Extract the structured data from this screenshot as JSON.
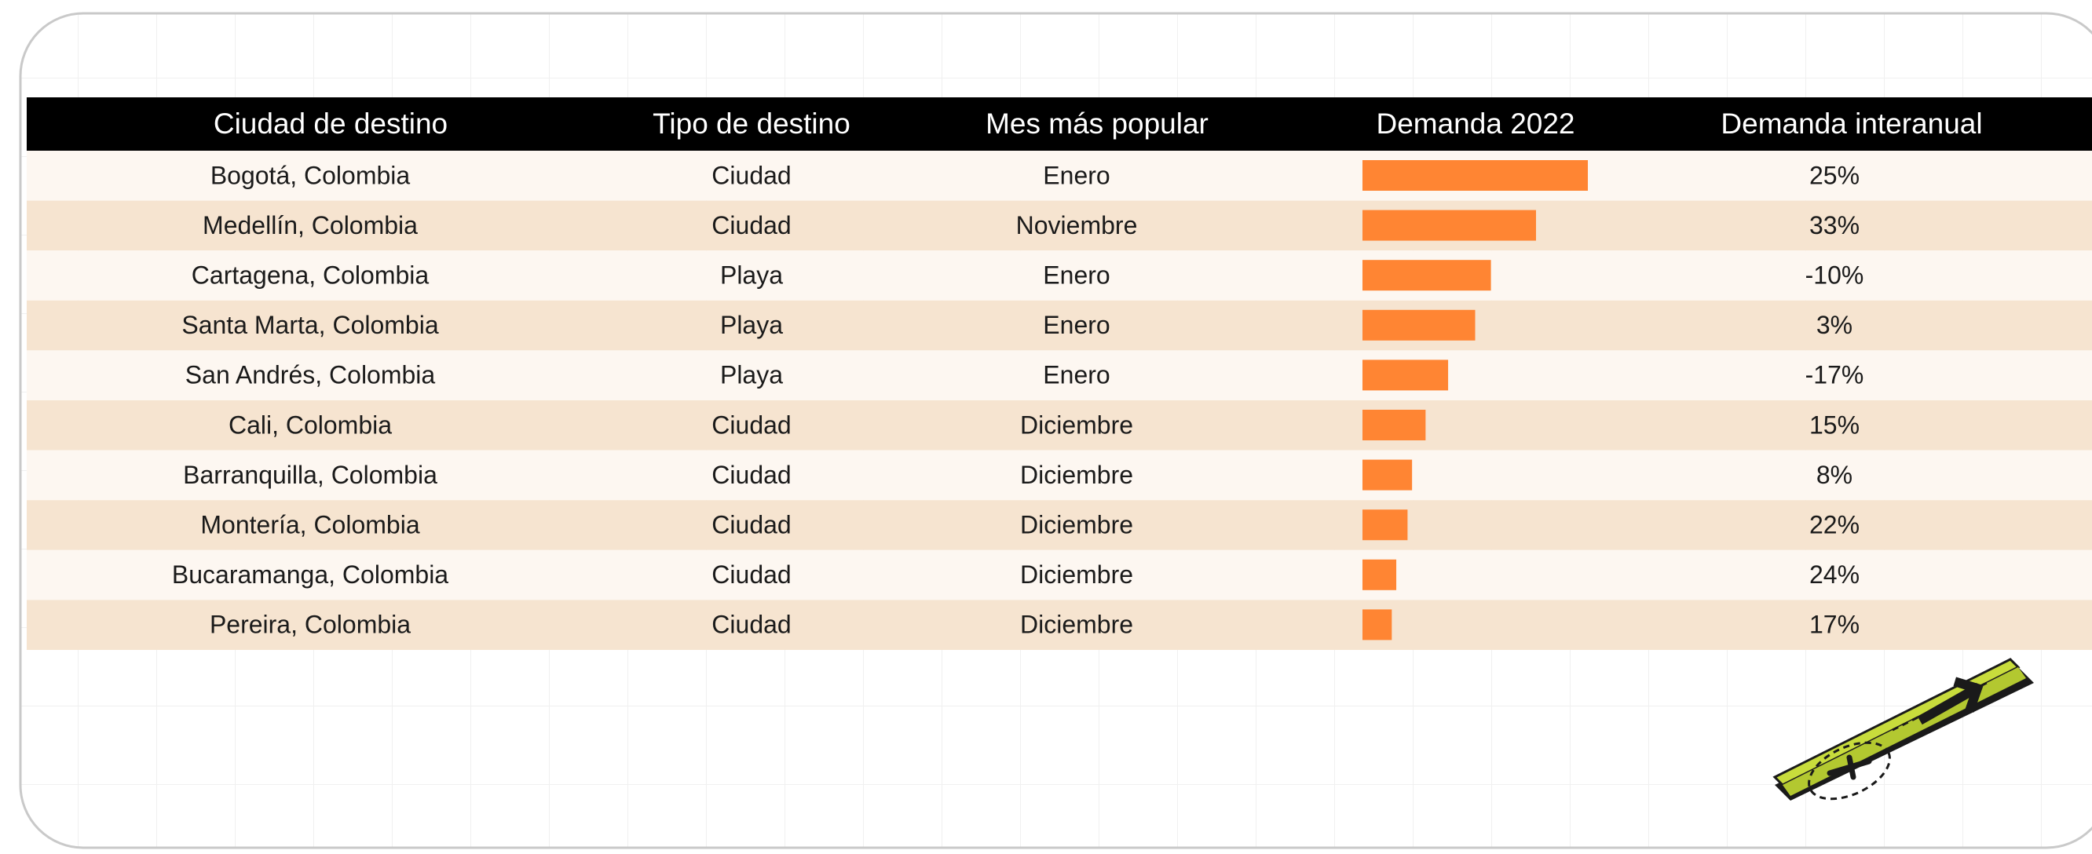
{
  "table": {
    "columns": [
      "Ciudad de destino",
      "Tipo de destino",
      "Mes más popular",
      "Demanda 2022",
      "Demanda interanual"
    ],
    "demand_scale": [
      0,
      100
    ],
    "bar_color": "#ff8533",
    "rows": [
      {
        "city": "Bogotá, Colombia",
        "type": "Ciudad",
        "month": "Enero",
        "demand": 100,
        "yoy": "25%"
      },
      {
        "city": "Medellín, Colombia",
        "type": "Ciudad",
        "month": "Noviembre",
        "demand": 77,
        "yoy": "33%"
      },
      {
        "city": "Cartagena, Colombia",
        "type": "Playa",
        "month": "Enero",
        "demand": 57,
        "yoy": "-10%"
      },
      {
        "city": "Santa Marta, Colombia",
        "type": "Playa",
        "month": "Enero",
        "demand": 50,
        "yoy": "3%"
      },
      {
        "city": "San Andrés, Colombia",
        "type": "Playa",
        "month": "Enero",
        "demand": 38,
        "yoy": "-17%"
      },
      {
        "city": "Cali, Colombia",
        "type": "Ciudad",
        "month": "Diciembre",
        "demand": 28,
        "yoy": "15%"
      },
      {
        "city": "Barranquilla, Colombia",
        "type": "Ciudad",
        "month": "Diciembre",
        "demand": 22,
        "yoy": "8%"
      },
      {
        "city": "Montería, Colombia",
        "type": "Ciudad",
        "month": "Diciembre",
        "demand": 20,
        "yoy": "22%"
      },
      {
        "city": "Bucaramanga, Colombia",
        "type": "Ciudad",
        "month": "Diciembre",
        "demand": 15,
        "yoy": "24%"
      },
      {
        "city": "Pereira, Colombia",
        "type": "Ciudad",
        "month": "Diciembre",
        "demand": 13,
        "yoy": "17%"
      }
    ]
  }
}
